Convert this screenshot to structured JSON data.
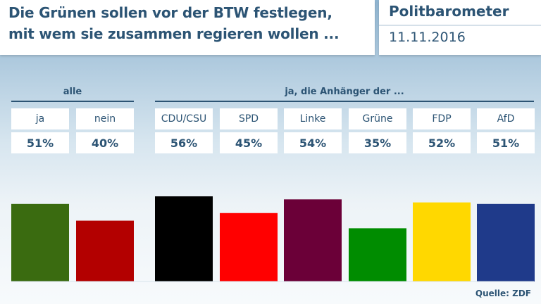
{
  "header": {
    "title_line1": "Die Grünen sollen vor der BTW festlegen,",
    "title_line2": "mit wem sie zusammen regieren wollen ...",
    "brand": "Politbarometer",
    "date": "11.11.2016"
  },
  "groups": {
    "all_label": "alle",
    "supporters_label": "ja, die Anhänger der ..."
  },
  "source": "Quelle: ZDF",
  "chart_data": {
    "type": "bar",
    "title": "Die Grünen sollen vor der BTW festlegen, mit wem sie zusammen regieren wollen ...",
    "categories": [
      "ja",
      "nein",
      "CDU/CSU",
      "SPD",
      "Linke",
      "Grüne",
      "FDP",
      "AfD"
    ],
    "values": [
      51,
      40,
      56,
      45,
      54,
      35,
      52,
      51
    ],
    "value_labels": [
      "51%",
      "40%",
      "56%",
      "45%",
      "54%",
      "35%",
      "52%",
      "51%"
    ],
    "colors": [
      "#3a6b10",
      "#b30000",
      "#000000",
      "#ff0000",
      "#6b0038",
      "#008c00",
      "#ffd800",
      "#1f3a8a"
    ],
    "ylabel": "%",
    "ylim": [
      0,
      56
    ]
  }
}
